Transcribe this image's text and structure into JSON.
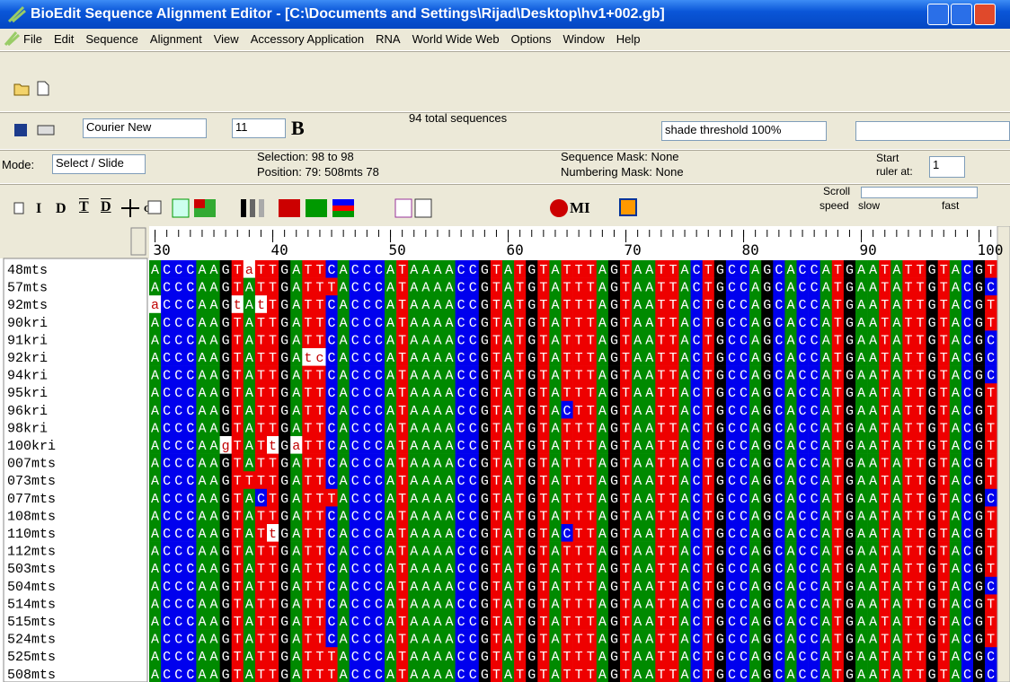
{
  "window": {
    "title": "BioEdit Sequence Alignment Editor - [C:\\Documents and Settings\\Rijad\\Desktop\\hv1+002.gb]"
  },
  "menu": [
    "File",
    "Edit",
    "Sequence",
    "Alignment",
    "View",
    "Accessory Application",
    "RNA",
    "World Wide Web",
    "Options",
    "Window",
    "Help"
  ],
  "toolbar": {
    "font": "Courier New",
    "font_size": "11",
    "bold": "B",
    "total": "94 total sequences",
    "shade": "shade threshold 100%"
  },
  "status": {
    "mode_label": "Mode:",
    "mode": "Select / Slide",
    "selection": "Selection: 98 to 98",
    "position": "Position:  79: 508mts 78",
    "sequence_mask": "Sequence Mask: None",
    "numbering_mask": "Numbering Mask: None",
    "start_label": "Start",
    "ruler_at": "ruler at:",
    "start_value": "1"
  },
  "tools": {
    "i": "I",
    "d": "D",
    "t": "T",
    "d2": "D",
    "gd": "G/D",
    "mi": "MI",
    "scroll": "Scroll",
    "speed": "speed",
    "slow": "slow",
    "fast": "fast"
  },
  "ruler": {
    "ticks": [
      30,
      40,
      50,
      60,
      70,
      80,
      90,
      100
    ]
  },
  "alignment": {
    "rows": [
      {
        "name": "48mts",
        "seq": "ACCCAAGTaTTGATTCACCCATAAAACCGTATGTATTTAGTAATTACTGCCAGCACCATGAATATTGTACGT"
      },
      {
        "name": "57mts",
        "seq": "ACCCAAGTATTGATTTACCCATAAAACCGTATGTATTTAGTAATTACTGCCAGCACCATGAATATTGTACGC"
      },
      {
        "name": "92mts",
        "seq": "aCCCAAGtAtTGATTCACCCATAAAACCGTATGTATTTAGTAATTACTGCCAGCACCATGAATATTGTACGT"
      },
      {
        "name": "90kri",
        "seq": "ACCCAAGTATTGATTCACCCATAAAACCGTATGTATTTAGTAATTACTGCCAGCACCATGAATATTGTACGT"
      },
      {
        "name": "91kri",
        "seq": "ACCCAAGTATTGATTCACCCATAAAACCGTATGTATTTAGTAATTACTGCCAGCACCATGAATATTGTACGC"
      },
      {
        "name": "92kri",
        "seq": "ACCCAAGTATTGAtcCACCCATAAAACCGTATGTATTTAGTAATTACTGCCAGCACCATGAATATTGTACGC"
      },
      {
        "name": "94kri",
        "seq": "ACCCAAGTATTGATTCACCCATAAAACCGTATGTATTTAGTAATTACTGCCAGCACCATGAATATTGTACGC"
      },
      {
        "name": "95kri",
        "seq": "ACCCAAGTATTGATTCACCCATAAAACCGTATGTATTTAGTAATTACTGCCAGCACCATGAATATTGTACGT"
      },
      {
        "name": "96kri",
        "seq": "ACCCAAGTATTGATTCACCCATAAAACCGTATGTACTTAGTAATTACTGCCAGCACCATGAATATTGTACGT"
      },
      {
        "name": "98kri",
        "seq": "ACCCAAGTATTGATTCACCCATAAAACCGTATGTATTTAGTAATTACTGCCAGCACCATGAATATTGTACGT"
      },
      {
        "name": "100kri",
        "seq": "ACCCAAgTATtGaTTCACCCATAAAACCGTATGTATTTAGTAATTACTGCCAGCACCATGAATATTGTACGT"
      },
      {
        "name": "007mts",
        "seq": "ACCCAAGTATTGATTCACCCATAAAACCGTATGTATTTAGTAATTACTGCCAGCACCATGAATATTGTACGT"
      },
      {
        "name": "073mts",
        "seq": "ACCCAAGTTTTGATTCACCCATAAAACCGTATGTATTTAGTAATTACTGCCAGCACCATGAATATTGTACGT"
      },
      {
        "name": "077mts",
        "seq": "ACCCAAGTACTGATTTACCCATAAAACCGTATGTATTTAGTAATTACTGCCAGCACCATGAATATTGTACGC"
      },
      {
        "name": "108mts",
        "seq": "ACCCAAGTATTGATTCACCCATAAAACCGTATGTATTTAGTAATTACTGCCAGCACCATGAATATTGTACGT"
      },
      {
        "name": "110mts",
        "seq": "ACCCAAGTATtGATTCACCCATAAAACCGTATGTACTTAGTAATTACTGCCAGCACCATGAATATTGTACGT"
      },
      {
        "name": "112mts",
        "seq": "ACCCAAGTATTGATTCACCCATAAAACCGTATGTATTTAGTAATTACTGCCAGCACCATGAATATTGTACGT"
      },
      {
        "name": "503mts",
        "seq": "ACCCAAGTATTGATTCACCCATAAAACCGTATGTATTTAGTAATTACTGCCAGCACCATGAATATTGTACGT"
      },
      {
        "name": "504mts",
        "seq": "ACCCAAGTATTGATTCACCCATAAAACCGTATGTATTTAGTAATTACTGCCAGCACCATGAATATTGTACGC"
      },
      {
        "name": "514mts",
        "seq": "ACCCAAGTATTGATTCACCCATAAAACCGTATGTATTTAGTAATTACTGCCAGCACCATGAATATTGTACGT"
      },
      {
        "name": "515mts",
        "seq": "ACCCAAGTATTGATTCACCCATAAAACCGTATGTATTTAGTAATTACTGCCAGCACCATGAATATTGTACGT"
      },
      {
        "name": "524mts",
        "seq": "ACCCAAGTATTGATTCACCCATAAAACCGTATGTATTTAGTAATTACTGCCAGCACCATGAATATTGTACGT"
      },
      {
        "name": "525mts",
        "seq": "ACCCAAGTATTGATTTACCCATAAAACCGTATGTATTTAGTAATTACTGCCAGCACCATGAATATTGTACGC"
      },
      {
        "name": "508mts",
        "seq": "ACCCAAGTATTGATTTACCCATAAAACCGTATGTATTTAGTAATTACTGCCAGCACCATGAATATTGTACGC"
      }
    ]
  }
}
